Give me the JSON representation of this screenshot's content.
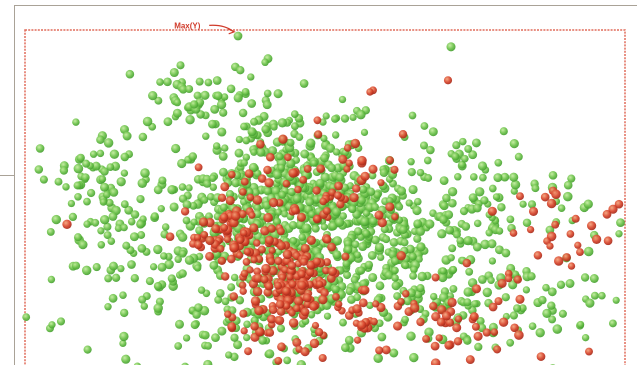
{
  "chart_data": {
    "type": "scatter",
    "title": "",
    "xlabel": "",
    "ylabel": "",
    "xlim": [
      0,
      100
    ],
    "ylim": [
      0,
      100
    ],
    "grid": false,
    "legend": "none",
    "annotations": [
      {
        "text": "Max(Y)",
        "x": 35.2,
        "y": 99.0
      }
    ],
    "series": [
      {
        "color": "#6cc24a",
        "clusters": [
          {
            "x": 48,
            "y": 45,
            "sx": 8,
            "sy": 9,
            "n": 340
          },
          {
            "x": 44,
            "y": 62,
            "sx": 8,
            "sy": 9,
            "n": 150
          },
          {
            "x": 34,
            "y": 42,
            "sx": 7,
            "sy": 9,
            "n": 140
          },
          {
            "x": 62,
            "y": 40,
            "sx": 8,
            "sy": 9,
            "n": 140
          },
          {
            "x": 68,
            "y": 20,
            "sx": 7,
            "sy": 8,
            "n": 100
          },
          {
            "x": 30,
            "y": 78,
            "sx": 6,
            "sy": 6,
            "n": 60
          },
          {
            "x": 12,
            "y": 55,
            "sx": 5,
            "sy": 8,
            "n": 70
          },
          {
            "x": 20,
            "y": 30,
            "sx": 7,
            "sy": 9,
            "n": 70
          },
          {
            "x": 38,
            "y": 10,
            "sx": 9,
            "sy": 6,
            "n": 80
          },
          {
            "x": 80,
            "y": 45,
            "sx": 7,
            "sy": 8,
            "n": 60
          },
          {
            "x": 88,
            "y": 18,
            "sx": 6,
            "sy": 8,
            "n": 40
          },
          {
            "x": 50,
            "y": 22,
            "sx": 8,
            "sy": 8,
            "n": 100
          },
          {
            "x": 72,
            "y": 62,
            "sx": 5,
            "sy": 5,
            "n": 30
          }
        ],
        "points": [
          [
            35.5,
            98.2
          ],
          [
            71.0,
            95.0
          ],
          [
            30.0,
            80.5
          ],
          [
            6.0,
            13.0
          ],
          [
            4.5,
            12.0
          ]
        ]
      },
      {
        "color": "#d8452c",
        "clusters": [
          {
            "x": 45,
            "y": 27,
            "sx": 4,
            "sy": 6,
            "n": 130
          },
          {
            "x": 35,
            "y": 38,
            "sx": 4,
            "sy": 5,
            "n": 80
          },
          {
            "x": 50,
            "y": 52,
            "sx": 7,
            "sy": 8,
            "n": 70
          },
          {
            "x": 42,
            "y": 16,
            "sx": 5,
            "sy": 6,
            "n": 50
          },
          {
            "x": 74,
            "y": 13,
            "sx": 5,
            "sy": 7,
            "n": 40
          },
          {
            "x": 58,
            "y": 12,
            "sx": 4,
            "sy": 5,
            "n": 30
          },
          {
            "x": 88,
            "y": 42,
            "sx": 4,
            "sy": 6,
            "n": 20
          }
        ],
        "points": [
          [
            70.5,
            85.0
          ],
          [
            58.0,
            82.0
          ],
          [
            57.5,
            81.5
          ],
          [
            88.0,
            52.0
          ],
          [
            88.5,
            51.0
          ],
          [
            97.0,
            45.0
          ],
          [
            99.0,
            48.0
          ],
          [
            98.0,
            46.5
          ],
          [
            94.0,
            4.0
          ],
          [
            86.0,
            2.5
          ],
          [
            87.0,
            37.0
          ],
          [
            87.5,
            35.5
          ],
          [
            7.0,
            42.0
          ]
        ]
      }
    ]
  }
}
